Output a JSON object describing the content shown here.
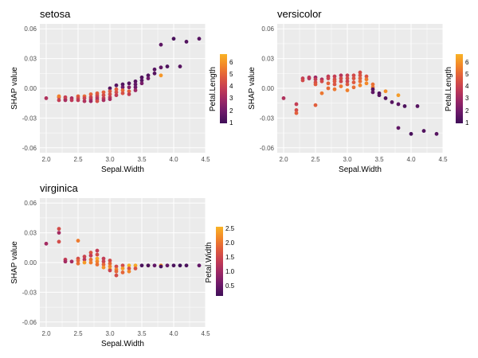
{
  "palette": [
    "#3f0f58",
    "#6e1a6a",
    "#9a2766",
    "#c33c55",
    "#e05b3d",
    "#f2852a",
    "#f9b325"
  ],
  "background_color": "#ebebeb",
  "gridline_color": "#ffffff",
  "chart_data": [
    {
      "type": "scatter",
      "title": "setosa",
      "xlabel": "Sepal.Width",
      "ylabel": "SHAP value",
      "xlim": [
        1.9,
        4.5
      ],
      "ylim": [
        -0.065,
        0.065
      ],
      "x_ticks": [
        "2.0",
        "2.5",
        "3.0",
        "3.5",
        "4.0",
        "4.5"
      ],
      "y_ticks": [
        "0.06",
        "0.03",
        "0.00",
        "-0.03",
        "-0.06"
      ],
      "grid": true,
      "color_variable": "Petal.Length",
      "color_range": [
        1,
        6.9
      ],
      "color_ticks": [
        "6",
        "5",
        "4",
        "3",
        "2",
        "1"
      ],
      "legend_position": "right",
      "points": [
        {
          "x": 2.0,
          "y": -0.01,
          "c": 3.5
        },
        {
          "x": 2.2,
          "y": -0.009,
          "c": 4.5
        },
        {
          "x": 2.2,
          "y": -0.012,
          "c": 4.0
        },
        {
          "x": 2.2,
          "y": -0.008,
          "c": 5.8
        },
        {
          "x": 2.3,
          "y": -0.009,
          "c": 4.0
        },
        {
          "x": 2.3,
          "y": -0.011,
          "c": 4.4
        },
        {
          "x": 2.3,
          "y": -0.012,
          "c": 3.3
        },
        {
          "x": 2.4,
          "y": -0.01,
          "c": 3.3
        },
        {
          "x": 2.4,
          "y": -0.012,
          "c": 3.8
        },
        {
          "x": 2.5,
          "y": -0.008,
          "c": 5.0
        },
        {
          "x": 2.5,
          "y": -0.01,
          "c": 4.5
        },
        {
          "x": 2.5,
          "y": -0.012,
          "c": 3.9
        },
        {
          "x": 2.6,
          "y": -0.008,
          "c": 5.3
        },
        {
          "x": 2.6,
          "y": -0.01,
          "c": 4.2
        },
        {
          "x": 2.6,
          "y": -0.013,
          "c": 3.5
        },
        {
          "x": 2.7,
          "y": -0.006,
          "c": 5.1
        },
        {
          "x": 2.7,
          "y": -0.009,
          "c": 4.2
        },
        {
          "x": 2.7,
          "y": -0.011,
          "c": 3.9
        },
        {
          "x": 2.7,
          "y": -0.013,
          "c": 3.0
        },
        {
          "x": 2.8,
          "y": -0.005,
          "c": 5.0
        },
        {
          "x": 2.8,
          "y": -0.007,
          "c": 4.6
        },
        {
          "x": 2.8,
          "y": -0.009,
          "c": 4.0
        },
        {
          "x": 2.8,
          "y": -0.011,
          "c": 3.5
        },
        {
          "x": 2.8,
          "y": -0.013,
          "c": 4.5
        },
        {
          "x": 2.9,
          "y": -0.004,
          "c": 5.0
        },
        {
          "x": 2.9,
          "y": -0.007,
          "c": 4.5
        },
        {
          "x": 2.9,
          "y": -0.01,
          "c": 4.0
        },
        {
          "x": 2.9,
          "y": -0.012,
          "c": 3.3
        },
        {
          "x": 3.0,
          "y": 0.0,
          "c": 1.5
        },
        {
          "x": 3.0,
          "y": -0.003,
          "c": 4.8
        },
        {
          "x": 3.0,
          "y": -0.006,
          "c": 4.5
        },
        {
          "x": 3.0,
          "y": -0.009,
          "c": 3.9
        },
        {
          "x": 3.0,
          "y": -0.011,
          "c": 3.3
        },
        {
          "x": 3.1,
          "y": 0.003,
          "c": 1.5
        },
        {
          "x": 3.1,
          "y": -0.001,
          "c": 5.0
        },
        {
          "x": 3.1,
          "y": -0.004,
          "c": 4.5
        },
        {
          "x": 3.1,
          "y": -0.007,
          "c": 3.9
        },
        {
          "x": 3.2,
          "y": 0.004,
          "c": 1.4
        },
        {
          "x": 3.2,
          "y": 0.001,
          "c": 2.0
        },
        {
          "x": 3.2,
          "y": -0.002,
          "c": 5.2
        },
        {
          "x": 3.2,
          "y": -0.005,
          "c": 4.6
        },
        {
          "x": 3.3,
          "y": 0.005,
          "c": 1.5
        },
        {
          "x": 3.3,
          "y": 0.001,
          "c": 2.5
        },
        {
          "x": 3.3,
          "y": -0.003,
          "c": 5.0
        },
        {
          "x": 3.3,
          "y": -0.006,
          "c": 4.0
        },
        {
          "x": 3.4,
          "y": 0.007,
          "c": 1.5
        },
        {
          "x": 3.4,
          "y": 0.004,
          "c": 1.7
        },
        {
          "x": 3.4,
          "y": 0.001,
          "c": 1.9
        },
        {
          "x": 3.4,
          "y": -0.002,
          "c": 3.0
        },
        {
          "x": 3.5,
          "y": 0.011,
          "c": 1.4
        },
        {
          "x": 3.5,
          "y": 0.008,
          "c": 1.5
        },
        {
          "x": 3.5,
          "y": 0.005,
          "c": 2.2
        },
        {
          "x": 3.6,
          "y": 0.013,
          "c": 1.4
        },
        {
          "x": 3.6,
          "y": 0.01,
          "c": 2.0
        },
        {
          "x": 3.7,
          "y": 0.015,
          "c": 1.5
        },
        {
          "x": 3.7,
          "y": 0.019,
          "c": 1.5
        },
        {
          "x": 3.8,
          "y": 0.021,
          "c": 1.7
        },
        {
          "x": 3.8,
          "y": 0.013,
          "c": 6.3
        },
        {
          "x": 3.8,
          "y": 0.044,
          "c": 1.6
        },
        {
          "x": 3.9,
          "y": 0.022,
          "c": 1.3
        },
        {
          "x": 4.0,
          "y": 0.05,
          "c": 1.2
        },
        {
          "x": 4.1,
          "y": 0.022,
          "c": 1.5
        },
        {
          "x": 4.2,
          "y": 0.047,
          "c": 1.4
        },
        {
          "x": 4.4,
          "y": 0.05,
          "c": 1.5
        }
      ]
    },
    {
      "type": "scatter",
      "title": "versicolor",
      "xlabel": "Sepal.Width",
      "ylabel": "SHAP value",
      "xlim": [
        1.9,
        4.5
      ],
      "ylim": [
        -0.065,
        0.065
      ],
      "x_ticks": [
        "2.0",
        "2.5",
        "3.0",
        "3.5",
        "4.0",
        "4.5"
      ],
      "y_ticks": [
        "0.06",
        "0.03",
        "0.00",
        "-0.03",
        "-0.06"
      ],
      "grid": true,
      "color_variable": "Petal.Length",
      "color_range": [
        1,
        6.9
      ],
      "color_ticks": [
        "6",
        "5",
        "4",
        "3",
        "2",
        "1"
      ],
      "legend_position": "right",
      "points": [
        {
          "x": 2.0,
          "y": -0.01,
          "c": 3.5
        },
        {
          "x": 2.2,
          "y": -0.016,
          "c": 4.0
        },
        {
          "x": 2.2,
          "y": -0.022,
          "c": 4.5
        },
        {
          "x": 2.2,
          "y": -0.025,
          "c": 5.0
        },
        {
          "x": 2.3,
          "y": 0.01,
          "c": 4.0
        },
        {
          "x": 2.3,
          "y": 0.008,
          "c": 4.4
        },
        {
          "x": 2.4,
          "y": 0.01,
          "c": 3.3
        },
        {
          "x": 2.4,
          "y": 0.011,
          "c": 3.8
        },
        {
          "x": 2.5,
          "y": 0.011,
          "c": 3.0
        },
        {
          "x": 2.5,
          "y": 0.009,
          "c": 4.0
        },
        {
          "x": 2.5,
          "y": 0.006,
          "c": 4.5
        },
        {
          "x": 2.5,
          "y": 0.004,
          "c": 4.9
        },
        {
          "x": 2.5,
          "y": -0.017,
          "c": 5.0
        },
        {
          "x": 2.6,
          "y": 0.009,
          "c": 3.5
        },
        {
          "x": 2.6,
          "y": 0.007,
          "c": 4.4
        },
        {
          "x": 2.6,
          "y": -0.005,
          "c": 5.6
        },
        {
          "x": 2.7,
          "y": 0.012,
          "c": 3.9
        },
        {
          "x": 2.7,
          "y": 0.01,
          "c": 4.2
        },
        {
          "x": 2.7,
          "y": 0.005,
          "c": 5.1
        },
        {
          "x": 2.7,
          "y": 0.0,
          "c": 5.3
        },
        {
          "x": 2.8,
          "y": 0.012,
          "c": 4.0
        },
        {
          "x": 2.8,
          "y": 0.009,
          "c": 4.5
        },
        {
          "x": 2.8,
          "y": 0.007,
          "c": 4.8
        },
        {
          "x": 2.8,
          "y": 0.004,
          "c": 4.7
        },
        {
          "x": 2.8,
          "y": -0.001,
          "c": 5.6
        },
        {
          "x": 2.9,
          "y": 0.013,
          "c": 3.6
        },
        {
          "x": 2.9,
          "y": 0.01,
          "c": 4.5
        },
        {
          "x": 2.9,
          "y": 0.007,
          "c": 4.3
        },
        {
          "x": 2.9,
          "y": 0.002,
          "c": 5.6
        },
        {
          "x": 3.0,
          "y": 0.013,
          "c": 4.1
        },
        {
          "x": 3.0,
          "y": 0.01,
          "c": 4.5
        },
        {
          "x": 3.0,
          "y": 0.007,
          "c": 4.2
        },
        {
          "x": 3.0,
          "y": 0.004,
          "c": 4.8
        },
        {
          "x": 3.0,
          "y": -0.002,
          "c": 5.8
        },
        {
          "x": 3.1,
          "y": 0.013,
          "c": 4.4
        },
        {
          "x": 3.1,
          "y": 0.01,
          "c": 4.7
        },
        {
          "x": 3.1,
          "y": 0.006,
          "c": 4.9
        },
        {
          "x": 3.1,
          "y": 0.001,
          "c": 5.4
        },
        {
          "x": 3.2,
          "y": 0.016,
          "c": 4.5
        },
        {
          "x": 3.2,
          "y": 0.013,
          "c": 4.7
        },
        {
          "x": 3.2,
          "y": 0.01,
          "c": 5.0
        },
        {
          "x": 3.2,
          "y": 0.007,
          "c": 5.3
        },
        {
          "x": 3.2,
          "y": 0.003,
          "c": 5.9
        },
        {
          "x": 3.3,
          "y": 0.012,
          "c": 4.7
        },
        {
          "x": 3.3,
          "y": 0.009,
          "c": 5.7
        },
        {
          "x": 3.3,
          "y": 0.005,
          "c": 6.0
        },
        {
          "x": 3.4,
          "y": 0.004,
          "c": 5.4
        },
        {
          "x": 3.4,
          "y": 0.001,
          "c": 5.6
        },
        {
          "x": 3.4,
          "y": -0.001,
          "c": 1.5
        },
        {
          "x": 3.4,
          "y": -0.004,
          "c": 1.7
        },
        {
          "x": 3.5,
          "y": -0.005,
          "c": 1.4
        },
        {
          "x": 3.5,
          "y": -0.007,
          "c": 1.5
        },
        {
          "x": 3.6,
          "y": -0.003,
          "c": 6.1
        },
        {
          "x": 3.6,
          "y": -0.01,
          "c": 1.4
        },
        {
          "x": 3.7,
          "y": -0.014,
          "c": 1.5
        },
        {
          "x": 3.8,
          "y": -0.007,
          "c": 6.4
        },
        {
          "x": 3.8,
          "y": -0.016,
          "c": 1.6
        },
        {
          "x": 3.8,
          "y": -0.04,
          "c": 1.7
        },
        {
          "x": 3.9,
          "y": -0.018,
          "c": 1.3
        },
        {
          "x": 4.0,
          "y": -0.046,
          "c": 1.2
        },
        {
          "x": 4.1,
          "y": -0.018,
          "c": 1.5
        },
        {
          "x": 4.2,
          "y": -0.043,
          "c": 1.4
        },
        {
          "x": 4.4,
          "y": -0.046,
          "c": 1.5
        }
      ]
    },
    {
      "type": "scatter",
      "title": "virginica",
      "xlabel": "Sepal.Width",
      "ylabel": "SHAP value",
      "xlim": [
        1.9,
        4.5
      ],
      "ylim": [
        -0.065,
        0.065
      ],
      "x_ticks": [
        "2.0",
        "2.5",
        "3.0",
        "3.5",
        "4.0",
        "4.5"
      ],
      "y_ticks": [
        "0.06",
        "0.03",
        "0.00",
        "-0.03",
        "-0.06"
      ],
      "grid": true,
      "color_variable": "Petal.Width",
      "color_range": [
        0.1,
        2.5
      ],
      "color_ticks": [
        "2.5",
        "2.0",
        "1.5",
        "1.0",
        "0.5"
      ],
      "legend_position": "right",
      "points": [
        {
          "x": 2.0,
          "y": 0.019,
          "c": 1.0
        },
        {
          "x": 2.2,
          "y": 0.034,
          "c": 1.5
        },
        {
          "x": 2.2,
          "y": 0.03,
          "c": 1.0
        },
        {
          "x": 2.2,
          "y": 0.021,
          "c": 1.5
        },
        {
          "x": 2.3,
          "y": 0.003,
          "c": 1.3
        },
        {
          "x": 2.3,
          "y": 0.001,
          "c": 1.0
        },
        {
          "x": 2.4,
          "y": 0.001,
          "c": 1.0
        },
        {
          "x": 2.5,
          "y": 0.022,
          "c": 2.0
        },
        {
          "x": 2.5,
          "y": 0.004,
          "c": 1.5
        },
        {
          "x": 2.5,
          "y": 0.002,
          "c": 1.8
        },
        {
          "x": 2.5,
          "y": -0.001,
          "c": 1.9
        },
        {
          "x": 2.6,
          "y": 0.006,
          "c": 1.4
        },
        {
          "x": 2.6,
          "y": 0.003,
          "c": 1.2
        },
        {
          "x": 2.6,
          "y": 0.0,
          "c": 2.3
        },
        {
          "x": 2.7,
          "y": 0.01,
          "c": 1.6
        },
        {
          "x": 2.7,
          "y": 0.007,
          "c": 1.3
        },
        {
          "x": 2.7,
          "y": 0.003,
          "c": 1.9
        },
        {
          "x": 2.7,
          "y": 0.0,
          "c": 2.0
        },
        {
          "x": 2.8,
          "y": 0.012,
          "c": 1.3
        },
        {
          "x": 2.8,
          "y": 0.008,
          "c": 1.5
        },
        {
          "x": 2.8,
          "y": 0.004,
          "c": 2.4
        },
        {
          "x": 2.8,
          "y": 0.001,
          "c": 2.1
        },
        {
          "x": 2.8,
          "y": -0.002,
          "c": 1.9
        },
        {
          "x": 2.9,
          "y": 0.004,
          "c": 1.3
        },
        {
          "x": 2.9,
          "y": 0.001,
          "c": 1.4
        },
        {
          "x": 2.9,
          "y": -0.002,
          "c": 1.8
        },
        {
          "x": 2.9,
          "y": -0.005,
          "c": 2.2
        },
        {
          "x": 3.0,
          "y": 0.002,
          "c": 1.5
        },
        {
          "x": 3.0,
          "y": -0.001,
          "c": 1.8
        },
        {
          "x": 3.0,
          "y": -0.004,
          "c": 2.1
        },
        {
          "x": 3.0,
          "y": -0.007,
          "c": 2.3
        },
        {
          "x": 3.0,
          "y": -0.008,
          "c": 1.4
        },
        {
          "x": 3.1,
          "y": -0.004,
          "c": 1.5
        },
        {
          "x": 3.1,
          "y": -0.007,
          "c": 2.1
        },
        {
          "x": 3.1,
          "y": -0.009,
          "c": 1.8
        },
        {
          "x": 3.1,
          "y": -0.013,
          "c": 1.5
        },
        {
          "x": 3.2,
          "y": -0.003,
          "c": 1.5
        },
        {
          "x": 3.2,
          "y": -0.006,
          "c": 2.3
        },
        {
          "x": 3.2,
          "y": -0.01,
          "c": 1.8
        },
        {
          "x": 3.3,
          "y": -0.003,
          "c": 2.5
        },
        {
          "x": 3.3,
          "y": -0.006,
          "c": 1.6
        },
        {
          "x": 3.3,
          "y": -0.009,
          "c": 2.1
        },
        {
          "x": 3.4,
          "y": -0.003,
          "c": 2.4
        },
        {
          "x": 3.4,
          "y": -0.006,
          "c": 1.6
        },
        {
          "x": 3.5,
          "y": -0.003,
          "c": 0.2
        },
        {
          "x": 3.6,
          "y": -0.003,
          "c": 2.5
        },
        {
          "x": 3.6,
          "y": -0.003,
          "c": 0.2
        },
        {
          "x": 3.7,
          "y": -0.003,
          "c": 0.4
        },
        {
          "x": 3.8,
          "y": -0.003,
          "c": 2.2
        },
        {
          "x": 3.8,
          "y": -0.004,
          "c": 0.2
        },
        {
          "x": 3.9,
          "y": -0.003,
          "c": 0.4
        },
        {
          "x": 4.0,
          "y": -0.003,
          "c": 0.2
        },
        {
          "x": 4.1,
          "y": -0.003,
          "c": 0.1
        },
        {
          "x": 4.2,
          "y": -0.003,
          "c": 0.2
        },
        {
          "x": 4.4,
          "y": -0.003,
          "c": 0.4
        }
      ]
    }
  ]
}
